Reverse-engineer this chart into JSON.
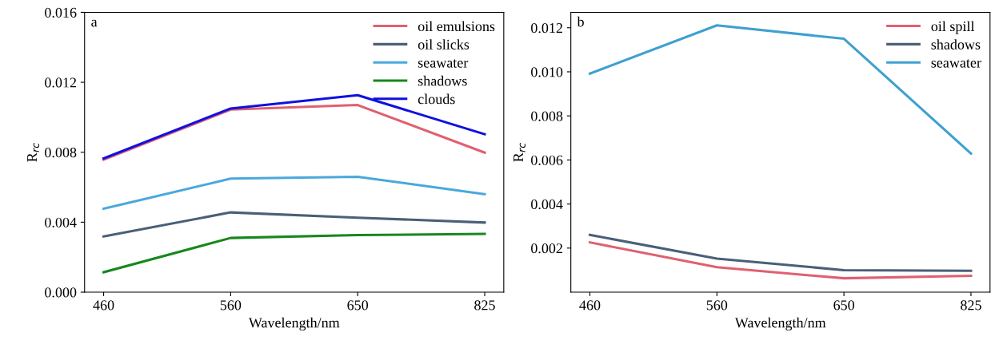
{
  "chart_data": [
    {
      "type": "line",
      "annotations": [
        "a"
      ],
      "xlabel": "Wavelength/nm",
      "ylabel": "R$_{rc}$",
      "categories": [
        "460",
        "560",
        "650",
        "825"
      ],
      "ylim": [
        0,
        0.016
      ],
      "yticks": [
        {
          "value": 0,
          "label": "0.000"
        },
        {
          "value": 0.004,
          "label": "0.004"
        },
        {
          "value": 0.008,
          "label": "0.008"
        },
        {
          "value": 0.012,
          "label": "0.012"
        },
        {
          "value": 0.016,
          "label": "0.016"
        }
      ],
      "legend": "top right",
      "grid": false,
      "series": [
        {
          "name": "oil emulsions",
          "color": "#e06070",
          "values": [
            0.00758,
            0.01044,
            0.0107,
            0.00798
          ]
        },
        {
          "name": "oil slicks",
          "color": "#4a5f78",
          "values": [
            0.00319,
            0.00456,
            0.00426,
            0.00398
          ]
        },
        {
          "name": "seawater",
          "color": "#4aa8dc",
          "values": [
            0.00477,
            0.00649,
            0.0066,
            0.0056
          ]
        },
        {
          "name": "shadows",
          "color": "#17871e",
          "values": [
            0.00114,
            0.0031,
            0.00326,
            0.00333
          ]
        },
        {
          "name": "clouds",
          "color": "#1010e0",
          "values": [
            0.00765,
            0.0105,
            0.01126,
            0.00903
          ]
        }
      ]
    },
    {
      "type": "line",
      "annotations": [
        "b"
      ],
      "xlabel": "Wavelength/nm",
      "ylabel": "R$_{rc}$",
      "categories": [
        "460",
        "560",
        "650",
        "825"
      ],
      "ylim": [
        0,
        0.0127
      ],
      "yticks": [
        {
          "value": 0.002,
          "label": "0.002"
        },
        {
          "value": 0.004,
          "label": "0.004"
        },
        {
          "value": 0.006,
          "label": "0.006"
        },
        {
          "value": 0.008,
          "label": "0.008"
        },
        {
          "value": 0.01,
          "label": "0.010"
        },
        {
          "value": 0.012,
          "label": "0.012"
        }
      ],
      "legend": "top right",
      "grid": false,
      "series": [
        {
          "name": "oil spill",
          "color": "#e06070",
          "values": [
            0.00226,
            0.00113,
            0.00063,
            0.00074
          ]
        },
        {
          "name": "shadows",
          "color": "#4a5f78",
          "values": [
            0.0026,
            0.00152,
            0.001,
            0.00097
          ]
        },
        {
          "name": "seawater",
          "color": "#3fa0d0",
          "values": [
            0.00992,
            0.01211,
            0.0115,
            0.00629
          ]
        }
      ]
    }
  ]
}
